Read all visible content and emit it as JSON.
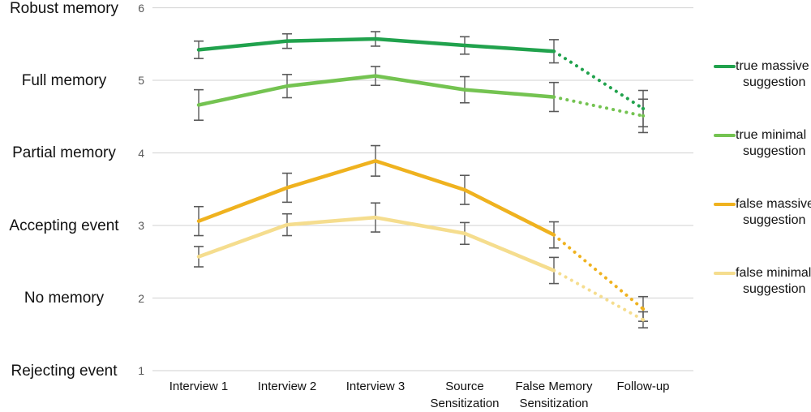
{
  "chart_data": {
    "type": "line",
    "title": "",
    "xlabel": "",
    "ylabel": "",
    "ylim": [
      1,
      6
    ],
    "grid": true,
    "legend_position": "right",
    "x_categories": [
      "Interview 1",
      "Interview 2",
      "Interview 3",
      "Source\nSensitization",
      "False Memory\nSensitization",
      "Follow-up"
    ],
    "y_ticks": [
      1,
      2,
      3,
      4,
      5,
      6
    ],
    "y_tick_labels": [
      "6",
      "5",
      "4",
      "3",
      "2",
      "1"
    ],
    "y_scale_labels": [
      {
        "value": 6,
        "text": "Robust memory"
      },
      {
        "value": 5,
        "text": "Full memory"
      },
      {
        "value": 4,
        "text": "Partial memory"
      },
      {
        "value": 3,
        "text": "Accepting event"
      },
      {
        "value": 2,
        "text": "No memory"
      },
      {
        "value": 1,
        "text": "Rejecting event"
      }
    ],
    "series": [
      {
        "name": "true massive suggestion",
        "color": "#21A24D",
        "values": [
          5.42,
          5.54,
          5.57,
          5.48,
          5.4,
          4.61
        ],
        "errors": [
          0.12,
          0.1,
          0.1,
          0.12,
          0.16,
          0.25
        ]
      },
      {
        "name": "true minimal suggestion",
        "color": "#74C351",
        "values": [
          4.66,
          4.92,
          5.06,
          4.87,
          4.77,
          4.51
        ],
        "errors": [
          0.21,
          0.16,
          0.13,
          0.18,
          0.2,
          0.23
        ]
      },
      {
        "name": "false massive suggestion",
        "color": "#EFB21F",
        "values": [
          3.06,
          3.52,
          3.89,
          3.49,
          2.87,
          1.85
        ],
        "errors": [
          0.2,
          0.2,
          0.21,
          0.2,
          0.18,
          0.17
        ]
      },
      {
        "name": "false minimal suggestion",
        "color": "#F5DD8E",
        "values": [
          2.57,
          3.01,
          3.11,
          2.89,
          2.38,
          1.7
        ],
        "errors": [
          0.14,
          0.15,
          0.2,
          0.15,
          0.18,
          0.11
        ]
      }
    ],
    "style": {
      "grid_color": "#D9D9D9",
      "error_bar_color": "#595959",
      "tick_label_color": "#595959",
      "text_color": "#111111",
      "dotted_from_index": 4,
      "dotted_from_category": "False Memory Sensitization",
      "dotted_to_category": "Follow-up"
    }
  }
}
